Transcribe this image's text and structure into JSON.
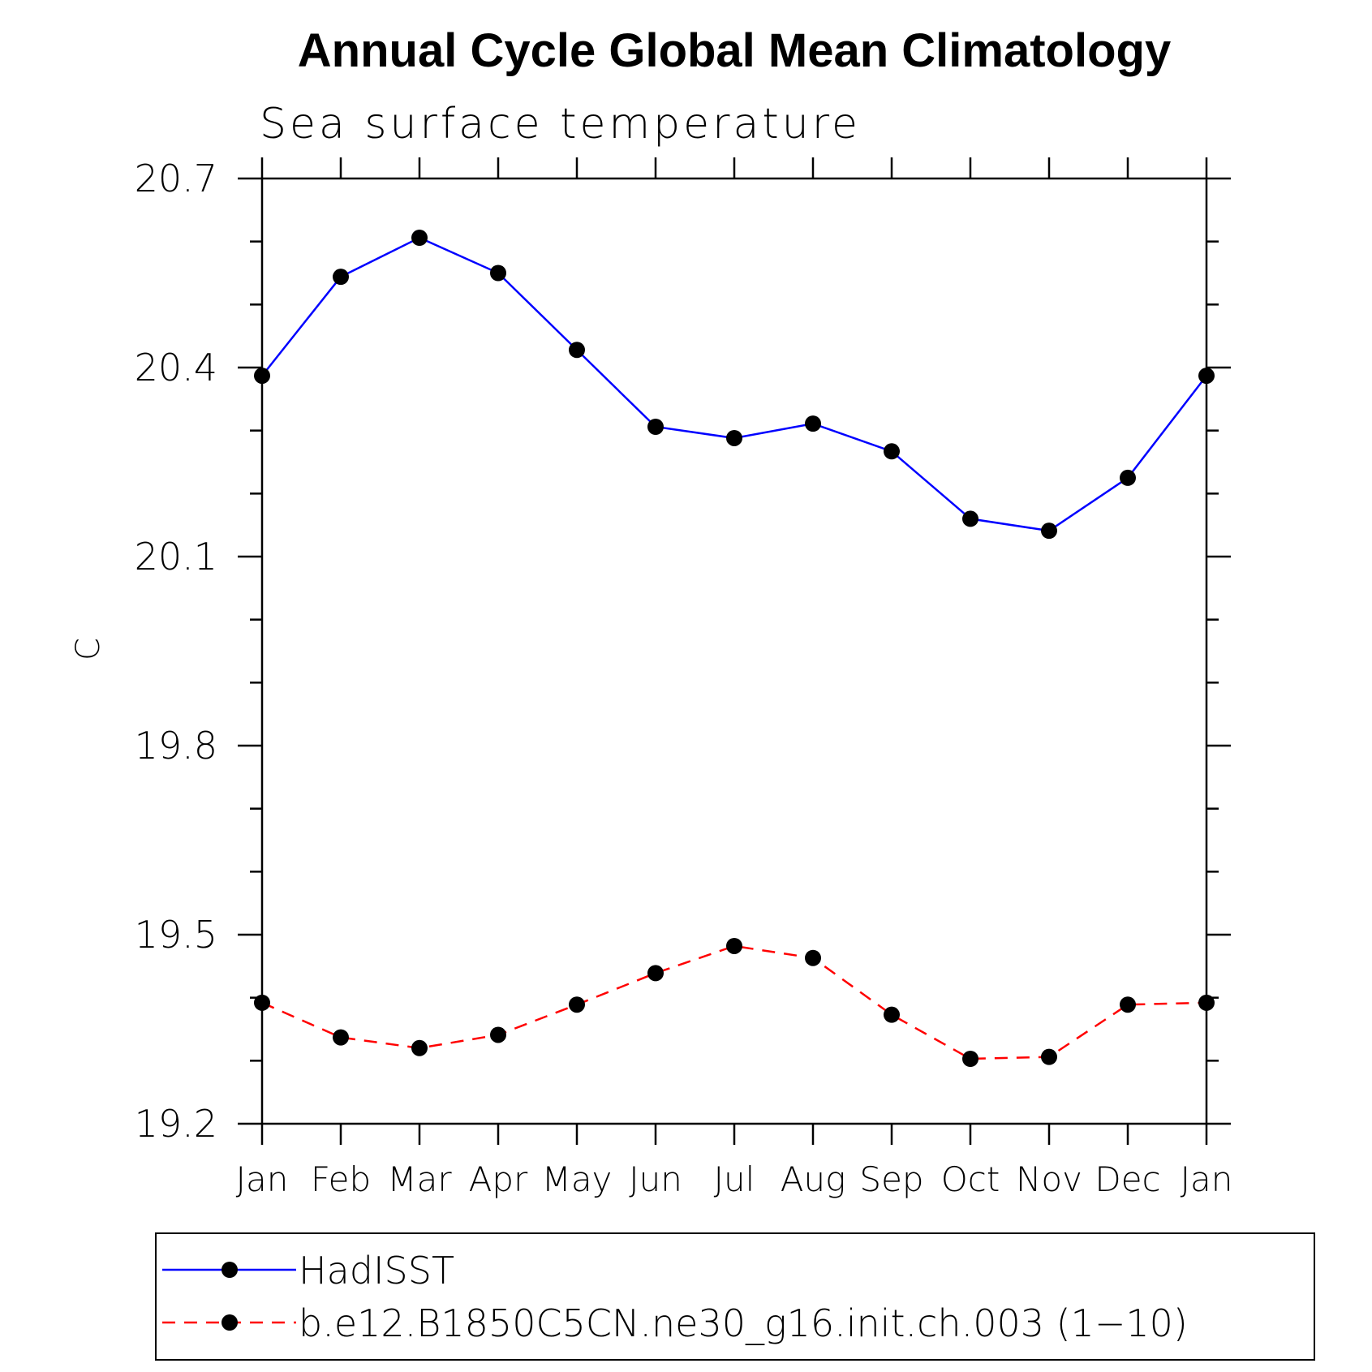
{
  "chart_data": {
    "type": "line",
    "title": "Annual Cycle Global Mean Climatology",
    "subtitle": "Sea surface temperature",
    "xlabel": "",
    "ylabel": "C",
    "categories": [
      "Jan",
      "Feb",
      "Mar",
      "Apr",
      "May",
      "Jun",
      "Jul",
      "Aug",
      "Sep",
      "Oct",
      "Nov",
      "Dec",
      "Jan"
    ],
    "ylim": [
      19.2,
      20.7
    ],
    "yticks": [
      "20.7",
      "20.4",
      "20.1",
      "19.8",
      "19.5",
      "19.2"
    ],
    "grid": false,
    "legend_position": "bottom",
    "series": [
      {
        "name": "HadISST",
        "color": "#0000ff",
        "line_style": "solid",
        "marker": "filled-circle",
        "values": [
          20.387,
          20.544,
          20.606,
          20.55,
          20.428,
          20.306,
          20.288,
          20.311,
          20.267,
          20.16,
          20.141,
          20.225,
          20.387
        ]
      },
      {
        "name": "b.e12.B1850C5CN.ne30_g16.init.ch.003 (1−10)",
        "color": "#ff0000",
        "line_style": "dashed",
        "marker": "filled-circle",
        "values": [
          19.392,
          19.337,
          19.32,
          19.341,
          19.389,
          19.439,
          19.482,
          19.463,
          19.373,
          19.303,
          19.306,
          19.389,
          19.392
        ]
      }
    ]
  }
}
